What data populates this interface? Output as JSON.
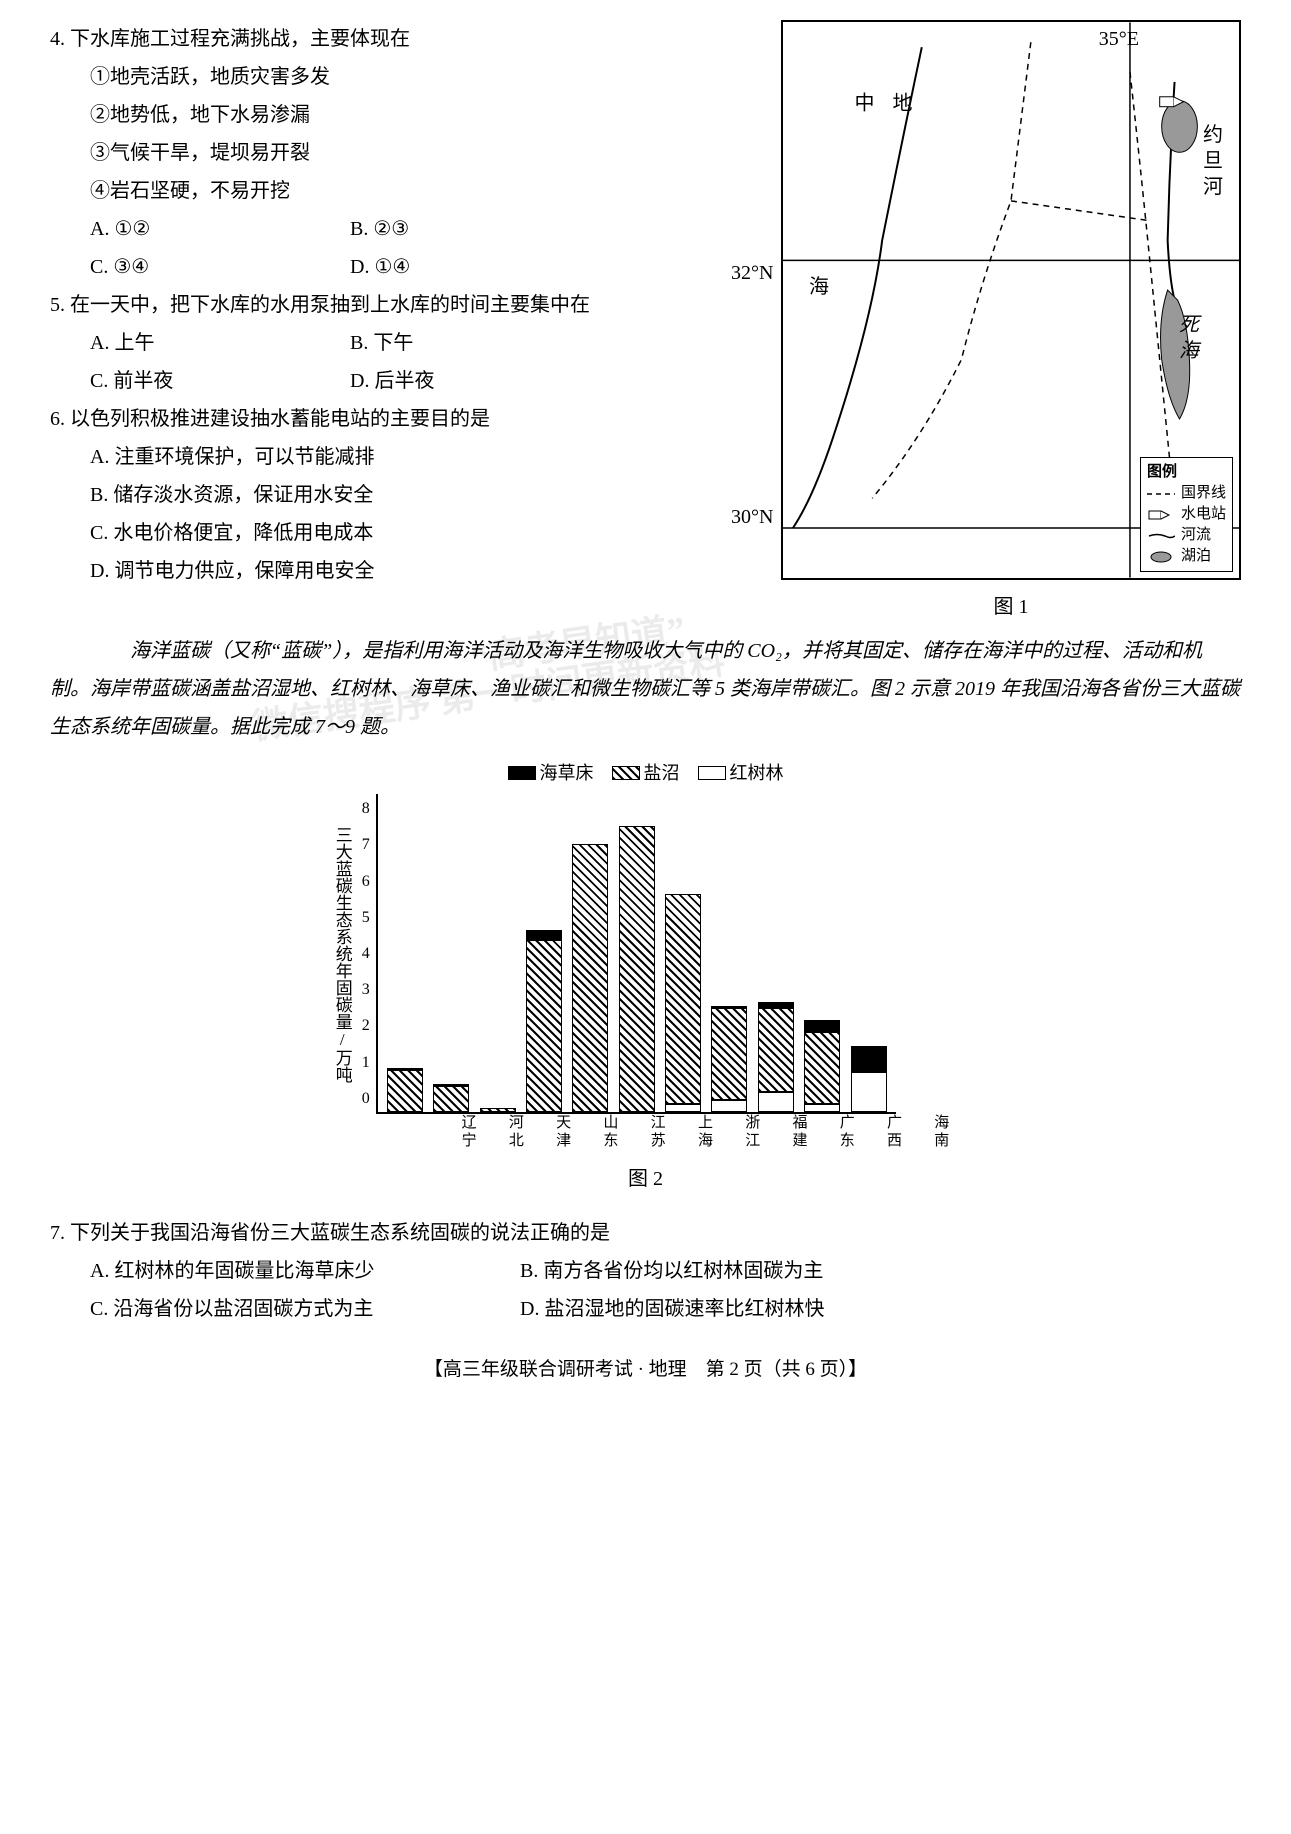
{
  "questions": {
    "q4": {
      "stem": "4. 下水库施工过程充满挑战，主要体现在",
      "items": [
        "①地壳活跃，地质灾害多发",
        "②地势低，地下水易渗漏",
        "③气候干旱，堤坝易开裂",
        "④岩石坚硬，不易开挖"
      ],
      "opts": {
        "A": "A. ①②",
        "B": "B. ②③",
        "C": "C. ③④",
        "D": "D. ①④"
      }
    },
    "q5": {
      "stem": "5. 在一天中，把下水库的水用泵抽到上水库的时间主要集中在",
      "opts": {
        "A": "A. 上午",
        "B": "B. 下午",
        "C": "C. 前半夜",
        "D": "D. 后半夜"
      }
    },
    "q6": {
      "stem": "6. 以色列积极推进建设抽水蓄能电站的主要目的是",
      "opts": {
        "A": "A. 注重环境保护，可以节能减排",
        "B": "B. 储存淡水资源，保证用水安全",
        "C": "C. 水电价格便宜，降低用电成本",
        "D": "D. 调节电力供应，保障用电安全"
      }
    },
    "intro": "　　海洋蓝碳（又称“蓝碳”），是指利用海洋活动及海洋生物吸收大气中的 CO₂，并将其固定、储存在海洋中的过程、活动和机制。海岸带蓝碳涵盖盐沼湿地、红树林、海草床、渔业碳汇和微生物碳汇等 5 类海岸带碳汇。图 2 示意 2019 年我国沿海各省份三大蓝碳生态系统年固碳量。据此完成 7～9 题。",
    "q7": {
      "stem": "7. 下列关于我国沿海省份三大蓝碳生态系统固碳的说法正确的是",
      "opts": {
        "A": "A. 红树林的年固碳量比海草床少",
        "B": "B. 南方各省份均以红树林固碳为主",
        "C": "C. 沿海省份以盐沼固碳方式为主",
        "D": "D. 盐沼湿地的固碳速率比红树林快"
      }
    }
  },
  "map": {
    "caption": "图 1",
    "labels": {
      "lon35": "35°E",
      "lat32": "32°N",
      "lat30": "30°N",
      "sea": "地\n中\n海",
      "jordan": "约\n旦\n河",
      "deadsea": "死\n海",
      "legend_title": "图例",
      "border": "国界线",
      "hydro": "水电站",
      "river": "河流",
      "lake": "湖泊"
    }
  },
  "chart": {
    "caption": "图 2",
    "ylabel": "三大蓝碳生态系统年固碳量/万吨",
    "ymax": 8,
    "ytick_step": 1,
    "yticks": [
      "8",
      "7",
      "6",
      "5",
      "4",
      "3",
      "2",
      "1",
      "0"
    ],
    "legend": {
      "haicao": "海草床",
      "yanzhao": "盐沼",
      "hongshu": "红树林"
    },
    "categories": [
      "辽宁",
      "河北",
      "天津",
      "山东",
      "江苏",
      "上海",
      "浙江",
      "福建",
      "广东",
      "广西",
      "海南"
    ],
    "series": [
      {
        "haicao": 0.05,
        "yanzhao": 1.05,
        "hongshu": 0
      },
      {
        "haicao": 0.05,
        "yanzhao": 0.65,
        "hongshu": 0
      },
      {
        "haicao": 0,
        "yanzhao": 0.1,
        "hongshu": 0
      },
      {
        "haicao": 0.25,
        "yanzhao": 4.3,
        "hongshu": 0
      },
      {
        "haicao": 0,
        "yanzhao": 6.7,
        "hongshu": 0
      },
      {
        "haicao": 0,
        "yanzhao": 7.15,
        "hongshu": 0
      },
      {
        "haicao": 0,
        "yanzhao": 5.25,
        "hongshu": 0.2
      },
      {
        "haicao": 0.05,
        "yanzhao": 2.3,
        "hongshu": 0.3
      },
      {
        "haicao": 0.15,
        "yanzhao": 2.1,
        "hongshu": 0.5
      },
      {
        "haicao": 0.3,
        "yanzhao": 1.8,
        "hongshu": 0.2
      },
      {
        "haicao": 0.6,
        "yanzhao": 0.05,
        "hongshu": 1.0
      }
    ],
    "colors": {
      "haicao": "#000000",
      "yanzhao_hatch": "repeating-linear-gradient(45deg,#000 0 2px,#fff 2px 6px)",
      "hongshu": "#ffffff"
    }
  },
  "watermarks": {
    "w1": "“高考早知道”",
    "w2": "微信搜程序 第一时间更新资料"
  },
  "footer": "【高三年级联合调研考试 · 地理　第 2 页（共 6 页）】"
}
